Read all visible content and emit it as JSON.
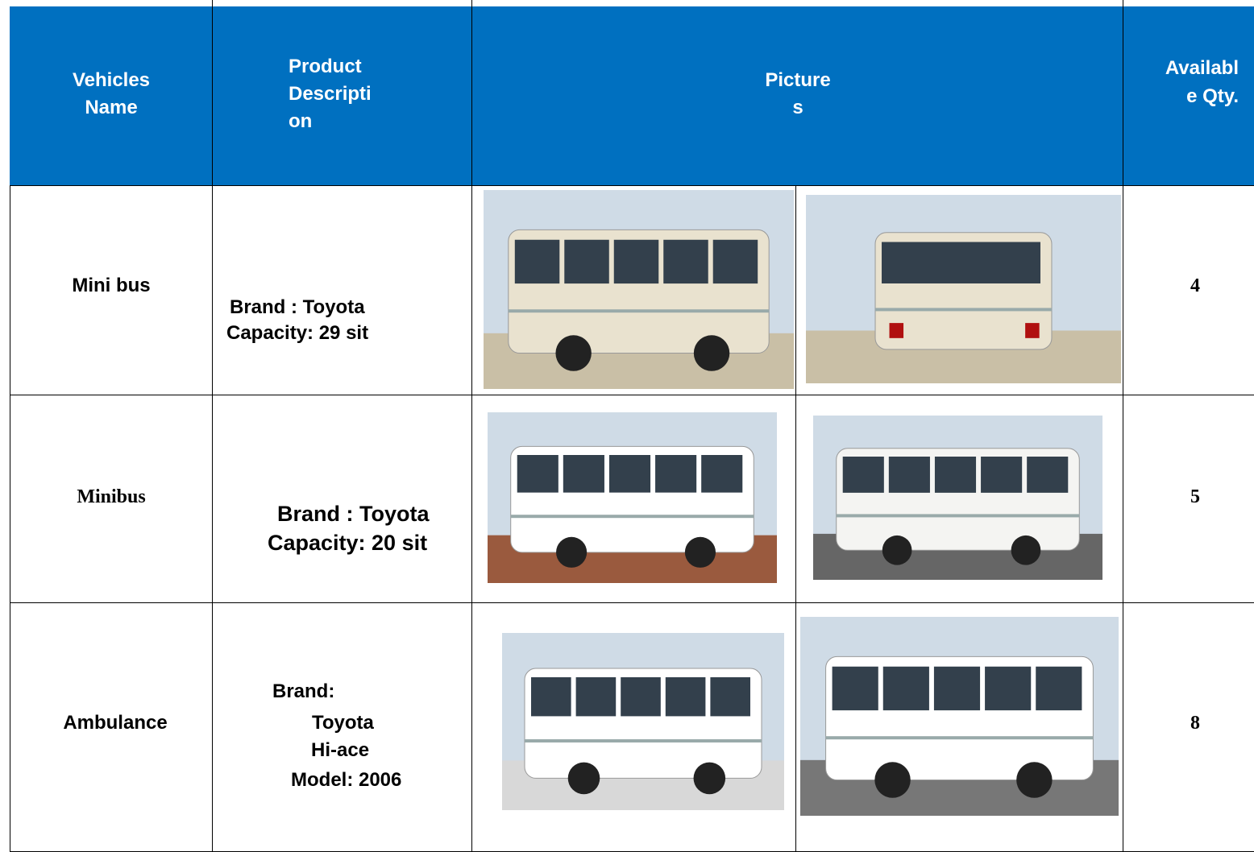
{
  "header": [
    [
      "Vehicles",
      "Name"
    ],
    [
      "Product",
      "Descripti",
      "on"
    ],
    [
      "Picture",
      "s"
    ],
    [
      "Availabl",
      "e Qty."
    ]
  ],
  "rows": [
    {
      "name": "Mini bus",
      "description": [
        "Brand : Toyota",
        "Capacity: 29 sit"
      ],
      "qty": 4
    },
    {
      "name": "Minibus",
      "description": [
        "Brand : Toyota",
        "Capacity: 20 sit"
      ],
      "qty": 5
    },
    {
      "name": "Ambulance",
      "description": [
        "Brand:",
        "Toyota",
        "Hi-ace",
        "Model: 2006"
      ],
      "qty": 8
    }
  ]
}
